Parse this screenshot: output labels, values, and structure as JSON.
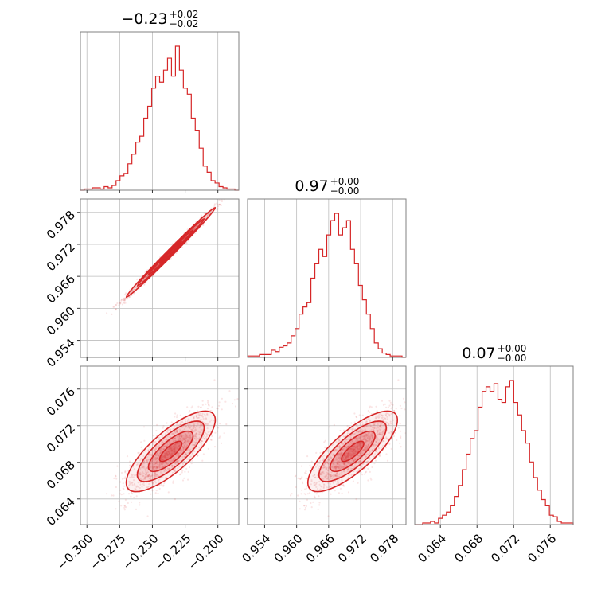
{
  "chart_data": {
    "type": "corner",
    "color": "#d62728",
    "parameters": [
      {
        "title_median": "−0.23",
        "title_plus": "+0.02",
        "title_minus": "−0.02",
        "range": [
          -0.305,
          -0.184
        ],
        "ticks": [
          -0.3,
          -0.275,
          -0.25,
          -0.225,
          -0.2
        ],
        "tick_labels": [
          "−0.300",
          "−0.275",
          "−0.250",
          "−0.225",
          "−0.200"
        ],
        "hist": [
          0,
          1,
          1,
          2,
          2,
          1,
          3,
          2,
          4,
          8,
          12,
          14,
          22,
          30,
          40,
          45,
          60,
          70,
          85,
          95,
          90,
          100,
          110,
          95,
          120,
          100,
          85,
          80,
          60,
          50,
          35,
          20,
          15,
          8,
          6,
          3,
          2,
          1,
          1,
          0
        ]
      },
      {
        "title_median": "0.97",
        "title_plus": "+0.00",
        "title_minus": "−0.00",
        "range": [
          0.9508,
          0.9805
        ],
        "ticks": [
          0.954,
          0.96,
          0.966,
          0.972,
          0.978
        ],
        "tick_labels": [
          "0.954",
          "0.960",
          "0.966",
          "0.972",
          "0.978"
        ],
        "hist": [
          1,
          1,
          1,
          2,
          2,
          2,
          5,
          4,
          7,
          8,
          10,
          15,
          20,
          30,
          35,
          38,
          55,
          65,
          75,
          70,
          85,
          95,
          100,
          85,
          90,
          95,
          75,
          65,
          50,
          40,
          30,
          20,
          10,
          6,
          3,
          2,
          1,
          1,
          1,
          0
        ]
      },
      {
        "title_median": "0.07",
        "title_plus": "+0.00",
        "title_minus": "−0.00",
        "range": [
          0.0612,
          0.0785
        ],
        "ticks": [
          0.064,
          0.068,
          0.072,
          0.076
        ],
        "tick_labels": [
          "0.064",
          "0.068",
          "0.072",
          "0.076"
        ],
        "hist": [
          0,
          0,
          1,
          1,
          2,
          1,
          4,
          6,
          8,
          12,
          18,
          25,
          35,
          45,
          55,
          60,
          75,
          85,
          88,
          85,
          90,
          80,
          78,
          88,
          92,
          78,
          70,
          60,
          52,
          40,
          30,
          22,
          16,
          12,
          6,
          5,
          2,
          1,
          1,
          1
        ]
      }
    ],
    "pairs": [
      {
        "x_param": 0,
        "y_param": 1,
        "correlation": 0.995
      },
      {
        "x_param": 0,
        "y_param": 2,
        "correlation": 0.78
      },
      {
        "x_param": 1,
        "y_param": 2,
        "correlation": 0.78
      }
    ],
    "grid": true
  }
}
